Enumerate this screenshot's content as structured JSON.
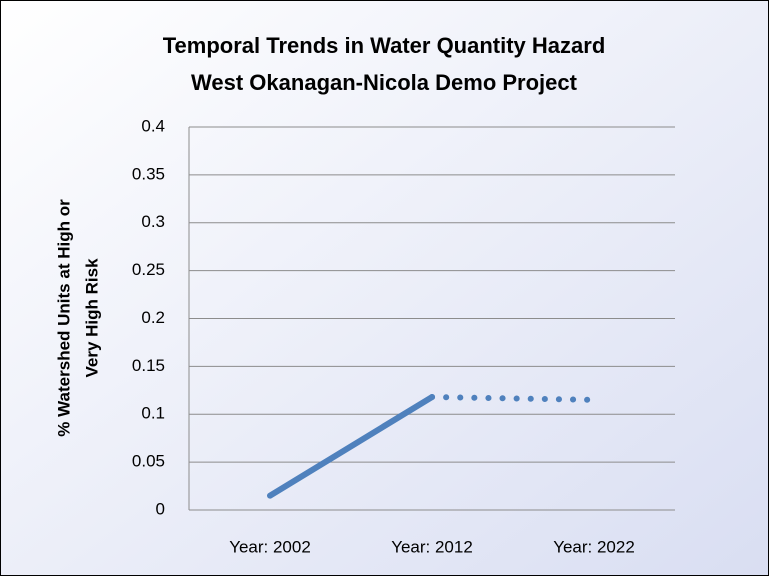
{
  "chart_data": {
    "type": "line",
    "title": [
      "Temporal Trends in Water Quantity Hazard",
      "West Okanagan-Nicola Demo Project"
    ],
    "ylabel": [
      "% Watershed Units at High or",
      "Very High Risk"
    ],
    "categories": [
      "Year: 2002",
      "Year: 2012",
      "Year: 2022"
    ],
    "series": [
      {
        "color": "#4f81bd",
        "line_style": "solid",
        "values": [
          0.015,
          0.118,
          null
        ]
      },
      {
        "color": "#4f81bd",
        "line_style": "dotted",
        "values": [
          null,
          0.118,
          0.115
        ]
      }
    ],
    "ylim": [
      0,
      0.4
    ],
    "yticks": [
      0,
      0.05,
      0.1,
      0.15,
      0.2,
      0.25,
      0.3,
      0.35,
      0.4
    ],
    "grid": true
  }
}
